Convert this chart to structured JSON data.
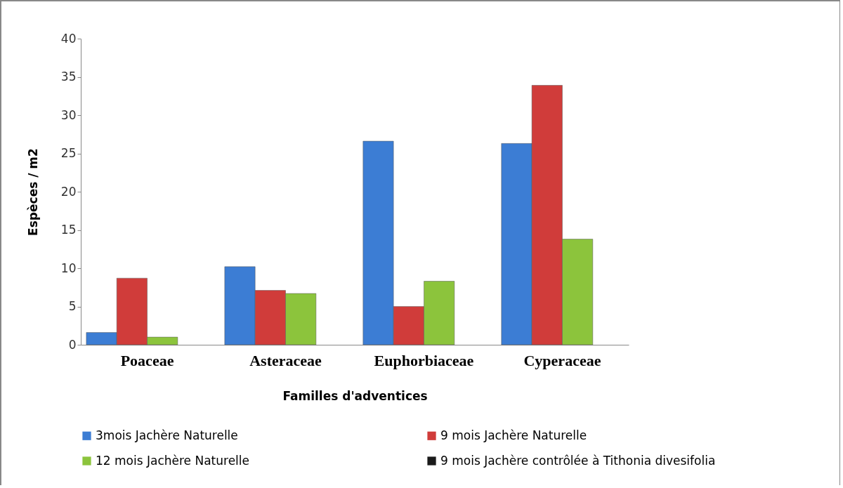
{
  "chart_data": {
    "type": "bar",
    "xlabel": "Familles d'adventices",
    "ylabel": "Espèces / m2",
    "categories": [
      "Poaceae",
      "Asteraceae",
      "Euphorbiaceae",
      "Cyperaceae"
    ],
    "series": [
      {
        "name": "3mois Jachère Naturelle",
        "color": "#3c7dd4",
        "values": [
          1.6,
          10.2,
          26.6,
          26.3
        ]
      },
      {
        "name": "9 mois Jachère Naturelle",
        "color": "#d03c3a",
        "values": [
          8.7,
          7.1,
          5.0,
          33.9
        ]
      },
      {
        "name": "12 mois Jachère Naturelle",
        "color": "#8cc43c",
        "values": [
          1.0,
          6.7,
          8.3,
          13.8
        ]
      },
      {
        "name": "9 mois Jachère contrôlée à Tithonia divesifolia",
        "color": "#1a1a1a",
        "values": [
          null,
          null,
          null,
          null
        ]
      }
    ],
    "ylim": [
      0,
      40
    ],
    "yticks": [
      0,
      5,
      10,
      15,
      20,
      25,
      30,
      35,
      40
    ],
    "grid": false,
    "legend": "bottom"
  }
}
